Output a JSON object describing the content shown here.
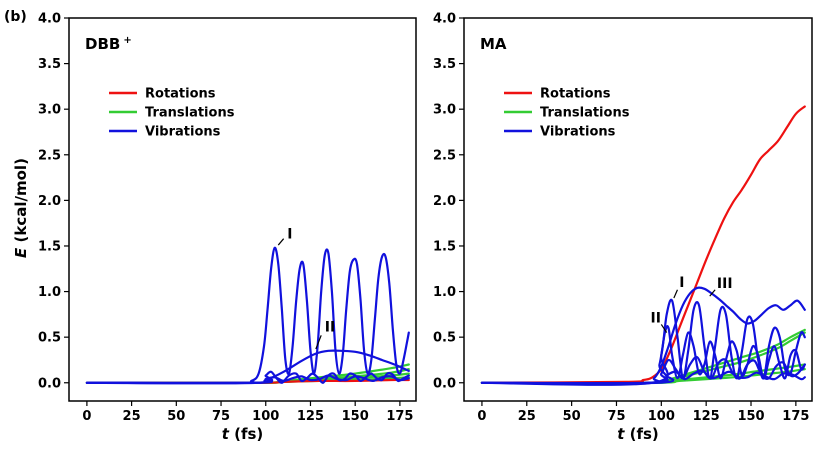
{
  "panel_label": "(b)",
  "ylabel_main": "E",
  "ylabel_unit": " (kcal/mol)",
  "colors": {
    "rotations": "#ee1111",
    "translations": "#33cc33",
    "vibrations": "#1111dd"
  },
  "chart_data": [
    {
      "type": "line",
      "title": "DBB",
      "title_sup": "+",
      "xlabel_main": "t",
      "xlabel_unit": " (fs)",
      "xlim": [
        -10,
        184
      ],
      "ylim": [
        -0.2,
        4.0
      ],
      "xticks": [
        "0",
        "25",
        "50",
        "75",
        "100",
        "125",
        "150",
        "175"
      ],
      "yticks": [
        "0.0",
        "0.5",
        "1.0",
        "1.5",
        "2.0",
        "2.5",
        "3.0",
        "3.5",
        "4.0"
      ],
      "legend": [
        "Rotations",
        "Translations",
        "Vibrations"
      ],
      "annotations": [
        {
          "text": "I",
          "x": 112,
          "y": 1.58,
          "ax": 107,
          "ay": 1.51,
          "bx": 110,
          "by": 1.58
        },
        {
          "text": "II",
          "x": 133,
          "y": 0.56,
          "ax": 128,
          "ay": 0.37,
          "bx": 131,
          "by": 0.52
        }
      ],
      "series": [
        {
          "name": "Rotations",
          "kind": "rotations",
          "x": [
            0,
            95,
            110,
            130,
            150,
            170,
            180
          ],
          "y": [
            0,
            0,
            0.01,
            0.02,
            0.02,
            0.03,
            0.03
          ]
        },
        {
          "name": "Translations",
          "kind": "translations",
          "x": [
            0,
            95,
            110,
            130,
            150,
            170,
            180
          ],
          "y": [
            0,
            0,
            0.02,
            0.06,
            0.1,
            0.16,
            0.2
          ]
        },
        {
          "name": "Translations",
          "kind": "translations",
          "x": [
            0,
            95,
            110,
            130,
            150,
            170,
            180
          ],
          "y": [
            0,
            0,
            0.01,
            0.04,
            0.07,
            0.11,
            0.15
          ]
        },
        {
          "name": "Translations",
          "kind": "translations",
          "x": [
            0,
            95,
            110,
            130,
            150,
            170,
            180
          ],
          "y": [
            0,
            0,
            0.01,
            0.03,
            0.05,
            0.08,
            0.1
          ]
        },
        {
          "name": "Translations",
          "kind": "translations",
          "x": [
            0,
            95,
            110,
            130,
            150,
            170,
            180
          ],
          "y": [
            0,
            0,
            0.01,
            0.02,
            0.03,
            0.05,
            0.06
          ]
        },
        {
          "name": "Vibrations",
          "kind": "vibrations",
          "x": [
            0,
            85,
            92,
            96,
            99,
            101,
            103,
            105,
            107,
            109,
            111,
            113,
            115,
            117,
            119,
            121,
            123,
            125,
            127,
            129,
            131,
            133,
            135,
            137,
            139,
            141,
            143,
            145,
            147,
            149,
            151,
            153,
            155,
            157,
            159,
            161,
            163,
            165,
            167,
            169,
            171,
            173,
            175,
            177,
            179,
            180
          ],
          "y": [
            0,
            0,
            0.02,
            0.1,
            0.4,
            0.8,
            1.25,
            1.48,
            1.3,
            0.8,
            0.25,
            0.1,
            0.4,
            0.9,
            1.25,
            1.3,
            0.9,
            0.35,
            0.1,
            0.4,
            1.0,
            1.4,
            1.42,
            1.0,
            0.35,
            0.1,
            0.3,
            0.8,
            1.22,
            1.35,
            1.3,
            0.9,
            0.35,
            0.1,
            0.25,
            0.7,
            1.15,
            1.38,
            1.38,
            1.1,
            0.6,
            0.2,
            0.1,
            0.25,
            0.45,
            0.55
          ]
        },
        {
          "name": "Vibrations",
          "kind": "vibrations",
          "x": [
            0,
            90,
            100,
            110,
            120,
            128,
            135,
            142,
            150,
            158,
            165,
            172,
            180
          ],
          "y": [
            0,
            0,
            0.03,
            0.12,
            0.24,
            0.32,
            0.35,
            0.35,
            0.34,
            0.3,
            0.25,
            0.2,
            0.13
          ]
        },
        {
          "name": "Vibrations",
          "kind": "vibrations",
          "x": [
            0,
            95,
            100,
            103,
            106,
            109,
            113,
            117,
            120,
            123,
            126,
            129,
            132,
            135,
            138,
            141,
            144,
            147,
            150,
            153,
            156,
            159,
            162,
            165,
            168,
            171,
            174,
            177,
            180
          ],
          "y": [
            0,
            0,
            0.08,
            0.12,
            0.05,
            0.0,
            0.08,
            0.1,
            0.02,
            0.05,
            0.1,
            0.06,
            0.0,
            0.08,
            0.1,
            0.03,
            0.04,
            0.1,
            0.08,
            0.02,
            0.06,
            0.1,
            0.05,
            0.03,
            0.1,
            0.09,
            0.02,
            0.05,
            0.08
          ]
        },
        {
          "name": "Vibrations",
          "kind": "vibrations",
          "x": [
            0,
            95,
            100,
            105,
            110,
            115,
            120,
            125,
            130,
            135,
            140,
            145,
            150,
            155,
            160,
            165,
            170,
            175,
            180
          ],
          "y": [
            0,
            0,
            0.04,
            0.06,
            0.02,
            0.05,
            0.07,
            0.03,
            0.04,
            0.08,
            0.04,
            0.03,
            0.07,
            0.05,
            0.02,
            0.06,
            0.07,
            0.03,
            0.05
          ]
        }
      ]
    },
    {
      "type": "line",
      "title": "MA",
      "title_sup": "",
      "xlabel_main": "t",
      "xlabel_unit": " (fs)",
      "xlim": [
        -10,
        184
      ],
      "ylim": [
        -0.2,
        4.0
      ],
      "xticks": [
        "0",
        "25",
        "50",
        "75",
        "100",
        "125",
        "150",
        "175"
      ],
      "yticks": [
        "0.0",
        "0.5",
        "1.0",
        "1.5",
        "2.0",
        "2.5",
        "3.0",
        "3.5",
        "4.0"
      ],
      "legend": [
        "Rotations",
        "Translations",
        "Vibrations"
      ],
      "annotations": [
        {
          "text": "I",
          "x": 110,
          "y": 1.05,
          "ax": 107,
          "ay": 0.93,
          "bx": 109,
          "by": 1.02
        },
        {
          "text": "III",
          "x": 131,
          "y": 1.04,
          "ax": 127,
          "ay": 0.95,
          "bx": 130,
          "by": 1.02
        },
        {
          "text": "II",
          "x": 94,
          "y": 0.66,
          "ax": 103,
          "ay": 0.55,
          "bx": 100,
          "by": 0.64
        }
      ],
      "series": [
        {
          "name": "Rotations",
          "kind": "rotations",
          "x": [
            0,
            80,
            90,
            95,
            100,
            105,
            110,
            115,
            120,
            125,
            130,
            135,
            140,
            145,
            150,
            155,
            160,
            165,
            170,
            175,
            180
          ],
          "y": [
            0,
            0.01,
            0.03,
            0.06,
            0.15,
            0.35,
            0.6,
            0.85,
            1.1,
            1.35,
            1.58,
            1.8,
            1.98,
            2.12,
            2.28,
            2.45,
            2.55,
            2.65,
            2.8,
            2.95,
            3.03
          ]
        },
        {
          "name": "Translations",
          "kind": "translations",
          "x": [
            0,
            95,
            105,
            115,
            125,
            135,
            145,
            155,
            165,
            172,
            180
          ],
          "y": [
            0,
            0,
            0.04,
            0.1,
            0.16,
            0.22,
            0.28,
            0.34,
            0.42,
            0.5,
            0.58
          ]
        },
        {
          "name": "Translations",
          "kind": "translations",
          "x": [
            0,
            95,
            105,
            115,
            125,
            135,
            145,
            155,
            165,
            172,
            180
          ],
          "y": [
            0,
            0,
            0.03,
            0.08,
            0.13,
            0.18,
            0.23,
            0.3,
            0.38,
            0.46,
            0.55
          ]
        },
        {
          "name": "Translations",
          "kind": "translations",
          "x": [
            0,
            95,
            110,
            125,
            140,
            155,
            170,
            180
          ],
          "y": [
            0,
            0,
            0.03,
            0.06,
            0.09,
            0.13,
            0.17,
            0.2
          ]
        },
        {
          "name": "Translations",
          "kind": "translations",
          "x": [
            0,
            95,
            110,
            125,
            140,
            155,
            170,
            180
          ],
          "y": [
            0,
            0,
            0.02,
            0.04,
            0.06,
            0.09,
            0.12,
            0.15
          ]
        },
        {
          "name": "Vibrations",
          "kind": "vibrations",
          "x": [
            0,
            90,
            96,
            100,
            104,
            108,
            112,
            116,
            120,
            124,
            128,
            132,
            136,
            140,
            144,
            148,
            152,
            156,
            160,
            164,
            168,
            172,
            176,
            180
          ],
          "y": [
            0,
            0,
            0.05,
            0.18,
            0.4,
            0.65,
            0.85,
            0.98,
            1.04,
            1.03,
            0.98,
            0.92,
            0.85,
            0.78,
            0.7,
            0.65,
            0.68,
            0.75,
            0.82,
            0.85,
            0.8,
            0.85,
            0.9,
            0.8
          ]
        },
        {
          "name": "Vibrations",
          "kind": "vibrations",
          "x": [
            0,
            95,
            100,
            103,
            106,
            109,
            112,
            115,
            118,
            121,
            124,
            127,
            130,
            133,
            136,
            139,
            142,
            145,
            148,
            151,
            154,
            157,
            160,
            163,
            166,
            169,
            172,
            175,
            178,
            180
          ],
          "y": [
            0,
            0,
            0.3,
            0.75,
            0.9,
            0.5,
            0.05,
            0.35,
            0.8,
            0.85,
            0.4,
            0.05,
            0.4,
            0.8,
            0.75,
            0.3,
            0.05,
            0.35,
            0.7,
            0.65,
            0.25,
            0.05,
            0.4,
            0.6,
            0.5,
            0.15,
            0.1,
            0.35,
            0.55,
            0.5
          ]
        },
        {
          "name": "Vibrations",
          "kind": "vibrations",
          "x": [
            0,
            95,
            99,
            102,
            104,
            106,
            109,
            112,
            115,
            118,
            121,
            124,
            127,
            130,
            133,
            136,
            139,
            142,
            145,
            148,
            151,
            154,
            157,
            160,
            163,
            166,
            169,
            172,
            175,
            178,
            180
          ],
          "y": [
            0,
            0,
            0.2,
            0.55,
            0.6,
            0.3,
            0.05,
            0.3,
            0.55,
            0.4,
            0.1,
            0.2,
            0.45,
            0.3,
            0.05,
            0.25,
            0.45,
            0.35,
            0.08,
            0.2,
            0.4,
            0.3,
            0.05,
            0.25,
            0.4,
            0.2,
            0.05,
            0.3,
            0.35,
            0.15,
            0.2
          ]
        },
        {
          "name": "Vibrations",
          "kind": "vibrations",
          "x": [
            0,
            95,
            100,
            104,
            108,
            112,
            116,
            120,
            124,
            128,
            132,
            136,
            140,
            144,
            148,
            152,
            156,
            160,
            164,
            168,
            172,
            176,
            180
          ],
          "y": [
            0,
            0,
            0.1,
            0.25,
            0.15,
            0.05,
            0.2,
            0.28,
            0.12,
            0.05,
            0.22,
            0.25,
            0.1,
            0.05,
            0.2,
            0.24,
            0.08,
            0.05,
            0.18,
            0.22,
            0.08,
            0.1,
            0.2
          ]
        },
        {
          "name": "Vibrations",
          "kind": "vibrations",
          "x": [
            0,
            98,
            103,
            108,
            113,
            118,
            123,
            128,
            133,
            138,
            143,
            148,
            153,
            158,
            163,
            168,
            173,
            178,
            180
          ],
          "y": [
            0,
            0,
            0.08,
            0.12,
            0.04,
            0.1,
            0.13,
            0.05,
            0.08,
            0.12,
            0.06,
            0.06,
            0.11,
            0.07,
            0.04,
            0.1,
            0.09,
            0.04,
            0.06
          ]
        }
      ]
    }
  ]
}
